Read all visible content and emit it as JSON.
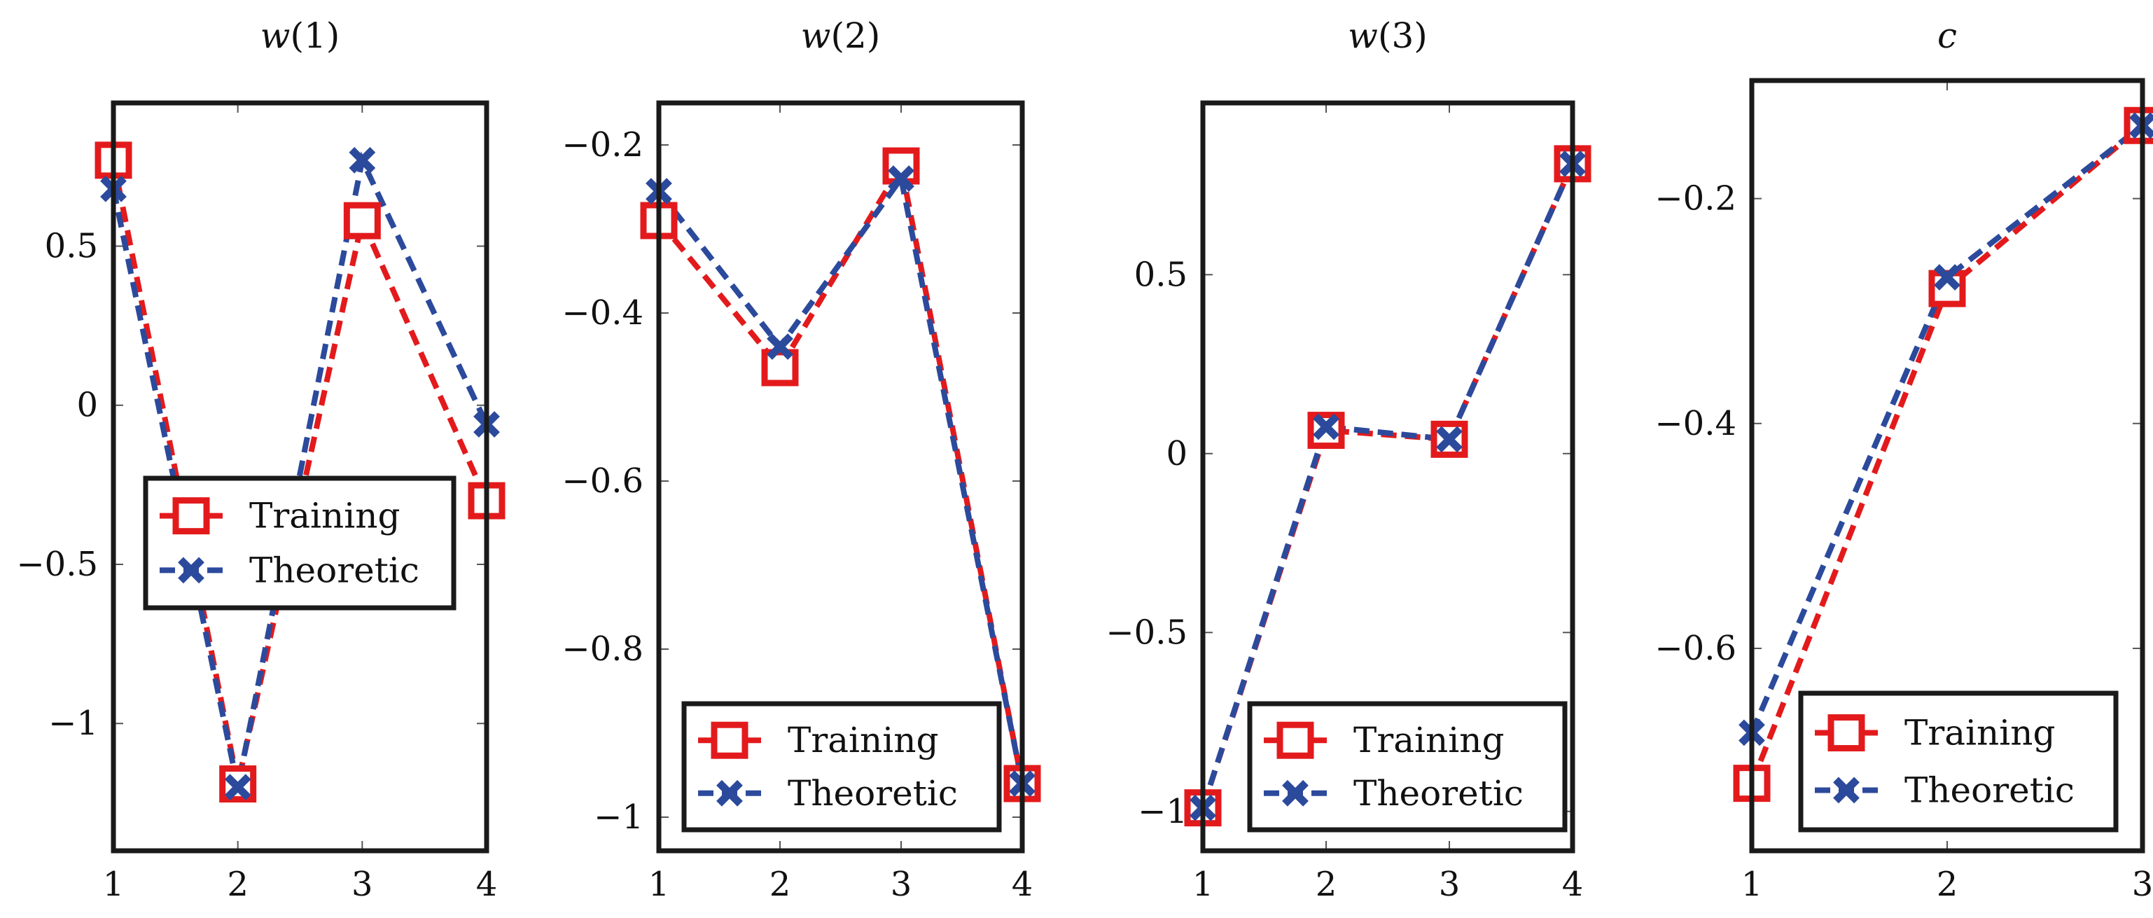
{
  "colors": {
    "training": "#e31a1c",
    "theoretic": "#2c4a9c",
    "frame": "#1a1a1a"
  },
  "chart_data": [
    {
      "type": "line",
      "title_base": "w",
      "title_index": "(1)",
      "x": [
        1,
        2,
        3,
        4
      ],
      "xticks": [
        1,
        2,
        3,
        4
      ],
      "xticklabels": [
        "1",
        "2",
        "3",
        "4"
      ],
      "xlim": [
        1,
        4
      ],
      "ylim": [
        -1.4,
        0.95
      ],
      "yticks": [
        0.5,
        0,
        -0.5,
        -1
      ],
      "yticklabels": [
        "0.5",
        "0",
        "−0.5",
        "−1"
      ],
      "legend_loc": "center-left",
      "series": [
        {
          "name": "Training",
          "marker": "square",
          "values": [
            0.77,
            -1.19,
            0.58,
            -0.3
          ]
        },
        {
          "name": "Theoretic",
          "marker": "x",
          "values": [
            0.68,
            -1.2,
            0.77,
            -0.06
          ]
        }
      ]
    },
    {
      "type": "line",
      "title_base": "w",
      "title_index": "(2)",
      "x": [
        1,
        2,
        3,
        4
      ],
      "xticks": [
        1,
        2,
        3,
        4
      ],
      "xticklabels": [
        "1",
        "2",
        "3",
        "4"
      ],
      "xlim": [
        1,
        4
      ],
      "ylim": [
        -1.04,
        -0.15
      ],
      "yticks": [
        -0.2,
        -0.4,
        -0.6,
        -0.8,
        -1
      ],
      "yticklabels": [
        "−0.2",
        "−0.4",
        "−0.6",
        "−0.8",
        "−1"
      ],
      "legend_loc": "bottom-center",
      "series": [
        {
          "name": "Training",
          "marker": "square",
          "values": [
            -0.29,
            -0.465,
            -0.225,
            -0.96
          ]
        },
        {
          "name": "Theoretic",
          "marker": "x",
          "values": [
            -0.255,
            -0.44,
            -0.24,
            -0.96
          ]
        }
      ]
    },
    {
      "type": "line",
      "title_base": "w",
      "title_index": "(3)",
      "x": [
        1,
        2,
        3,
        4
      ],
      "xticks": [
        1,
        2,
        3,
        4
      ],
      "xticklabels": [
        "1",
        "2",
        "3",
        "4"
      ],
      "xlim": [
        1,
        4
      ],
      "ylim": [
        -1.11,
        0.98
      ],
      "yticks": [
        0.5,
        0,
        -0.5,
        -1
      ],
      "yticklabels": [
        "0.5",
        "0",
        "−0.5",
        "−1"
      ],
      "legend_loc": "bottom-center",
      "series": [
        {
          "name": "Training",
          "marker": "square",
          "values": [
            -0.99,
            0.065,
            0.04,
            0.81
          ]
        },
        {
          "name": "Theoretic",
          "marker": "x",
          "values": [
            -0.99,
            0.075,
            0.04,
            0.81
          ]
        }
      ]
    },
    {
      "type": "line",
      "title_base": "c",
      "title_index": "",
      "x": [
        1,
        2,
        3
      ],
      "xticks": [
        1,
        2,
        3
      ],
      "xticklabels": [
        "1",
        "2",
        "3"
      ],
      "xlim": [
        1,
        3
      ],
      "ylim": [
        -0.78,
        -0.095
      ],
      "yticks": [
        -0.2,
        -0.4,
        -0.6
      ],
      "yticklabels": [
        "−0.2",
        "−0.4",
        "−0.6"
      ],
      "legend_loc": "bottom-right",
      "series": [
        {
          "name": "Training",
          "marker": "square",
          "values": [
            -0.72,
            -0.28,
            -0.135
          ]
        },
        {
          "name": "Theoretic",
          "marker": "x",
          "values": [
            -0.675,
            -0.27,
            -0.135
          ]
        }
      ]
    }
  ]
}
